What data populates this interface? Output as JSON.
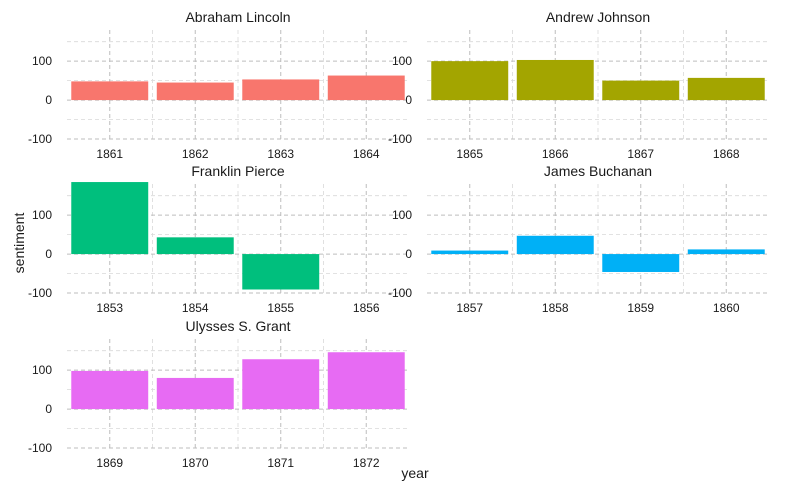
{
  "chart_data": {
    "type": "bar",
    "xlabel": "year",
    "ylabel": "sentiment",
    "ylim": [
      -100,
      180
    ],
    "yticks": [
      -100,
      0,
      100
    ],
    "grid": true,
    "legend": "none",
    "facets": [
      {
        "name": "Abraham Lincoln",
        "color": "#F8766D",
        "categories": [
          "1861",
          "1862",
          "1863",
          "1864"
        ],
        "values": [
          48,
          45,
          53,
          63
        ]
      },
      {
        "name": "Andrew Johnson",
        "color": "#A3A500",
        "categories": [
          "1865",
          "1866",
          "1867",
          "1868"
        ],
        "values": [
          100,
          103,
          50,
          57
        ]
      },
      {
        "name": "Franklin Pierce",
        "color": "#00BF7D",
        "categories": [
          "1853",
          "1854",
          "1855",
          "1856"
        ],
        "values": [
          185,
          43,
          -91,
          0
        ]
      },
      {
        "name": "James Buchanan",
        "color": "#00B0F6",
        "categories": [
          "1857",
          "1858",
          "1859",
          "1860"
        ],
        "values": [
          9,
          47,
          -46,
          12
        ]
      },
      {
        "name": "Ulysses S. Grant",
        "color": "#E76BF3",
        "categories": [
          "1869",
          "1870",
          "1871",
          "1872"
        ],
        "values": [
          98,
          80,
          128,
          146
        ]
      }
    ]
  }
}
